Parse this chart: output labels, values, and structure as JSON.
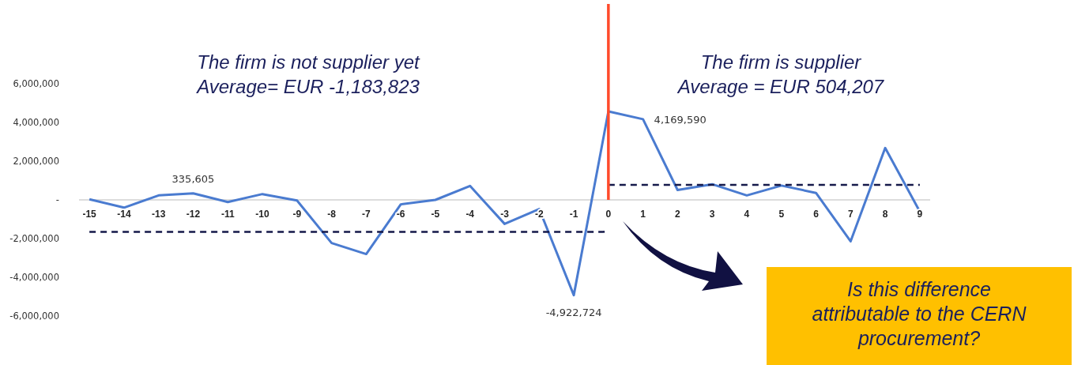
{
  "chart_data": {
    "type": "line",
    "x": [
      -15,
      -14,
      -13,
      -12,
      -11,
      -10,
      -9,
      -8,
      -7,
      -6,
      -5,
      -4,
      -3,
      -2,
      -1,
      0,
      1,
      2,
      3,
      4,
      5,
      6,
      7,
      8,
      9
    ],
    "xlim": [
      -15.3,
      9.3
    ],
    "xticks": [
      -15,
      -14,
      -13,
      -12,
      -11,
      -10,
      -9,
      -8,
      -7,
      -6,
      -5,
      -4,
      -3,
      -2,
      -1,
      0,
      1,
      2,
      3,
      4,
      5,
      6,
      7,
      8,
      9
    ],
    "ylim": [
      -6000000,
      6000000
    ],
    "yticks": [
      {
        "value": -6000000,
        "label": "-6,000,000"
      },
      {
        "value": -4000000,
        "label": "-4,000,000"
      },
      {
        "value": -2000000,
        "label": "-2,000,000"
      },
      {
        "value": 0,
        "label": "-"
      },
      {
        "value": 2000000,
        "label": "2,000,000"
      },
      {
        "value": 4000000,
        "label": "4,000,000"
      },
      {
        "value": 6000000,
        "label": "6,000,000"
      }
    ],
    "series": [
      {
        "color": "#4a7bd0",
        "line_style": "solid",
        "values": [
          30000,
          -400000,
          230000,
          335605,
          -110000,
          300000,
          -30000,
          -2230000,
          -2800000,
          -230000,
          0,
          720000,
          -1240000,
          -470000,
          -4922724,
          4570000,
          4169590,
          510000,
          810000,
          230000,
          740000,
          360000,
          -2140000,
          2680000,
          -600000
        ],
        "value_labels": [
          null,
          null,
          null,
          "335,605",
          null,
          null,
          null,
          null,
          null,
          null,
          null,
          null,
          null,
          null,
          "-4,922,724",
          null,
          "4,169,590",
          null,
          null,
          null,
          null,
          null,
          null,
          null,
          null
        ]
      },
      {
        "color": "#15194a",
        "line_style": "dashed",
        "x": [
          -15,
          0
        ],
        "values": [
          -1650000,
          -1650000
        ]
      },
      {
        "color": "#15194a",
        "line_style": "dashed",
        "x": [
          0,
          9
        ],
        "values": [
          780000,
          780000
        ]
      }
    ],
    "ref_lines": [
      {
        "axis": "x",
        "value": 0,
        "color": "#ff4b2b",
        "line_style": "solid"
      }
    ],
    "grid": false,
    "marker": "none",
    "annotations": [
      "The firm is not supplier yet\nAverage= EUR -1,183,823",
      "The firm is supplier\nAverage = EUR 504,207",
      "Is this difference\nattributable to the CERN\nprocurement?"
    ]
  }
}
